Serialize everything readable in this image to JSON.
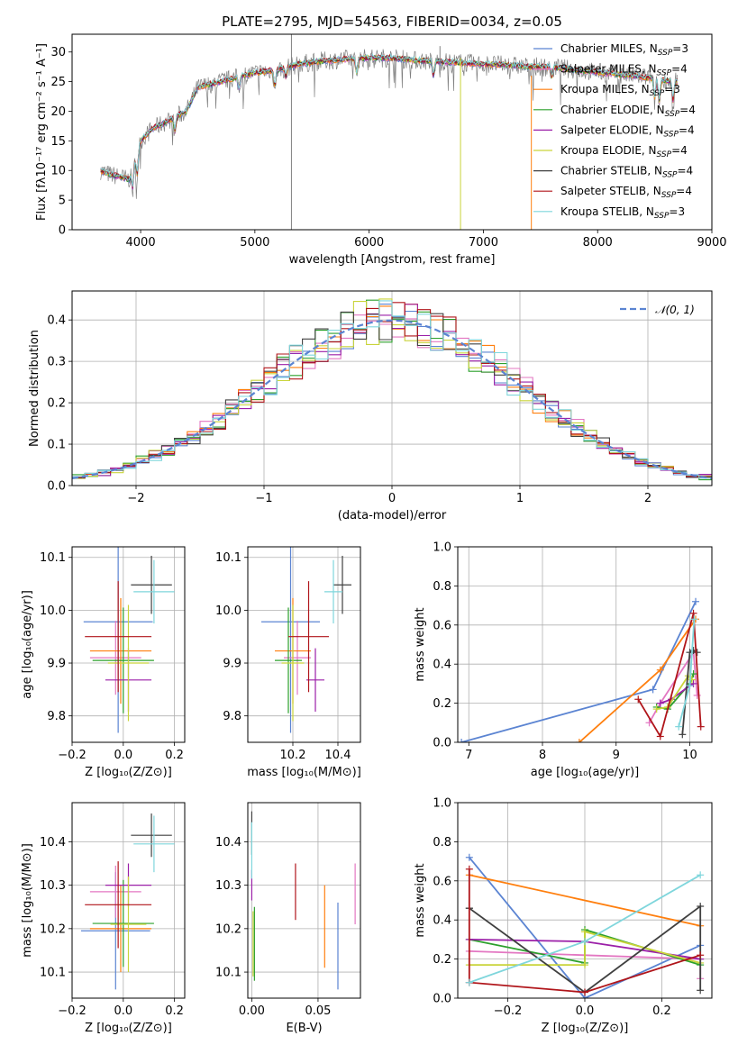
{
  "colors": {
    "chabrier_miles": "#5b84d2",
    "salpeter_miles": "#e377c2",
    "kroupa_miles": "#ff7f0e",
    "chabrier_elodie": "#2ca02c",
    "salpeter_elodie": "#9b1fa8",
    "kroupa_elodie": "#c9d43a",
    "chabrier_stelib": "#404040",
    "salpeter_stelib": "#b0151a",
    "kroupa_stelib": "#7fd6dc",
    "gaussian": "#5b84d2"
  },
  "chart_data": [
    {
      "id": "spectrum",
      "type": "line",
      "title": "PLATE=2795, MJD=54563, FIBERID=0034, z=0.05",
      "xlabel": "wavelength [Angstrom, rest frame]",
      "ylabel": "Flux [fλ10⁻¹⁷ erg cm⁻² s⁻¹ A⁻¹]",
      "xlim": [
        3400,
        9000
      ],
      "ylim": [
        0,
        33
      ],
      "xticks": [
        4000,
        5000,
        6000,
        7000,
        8000,
        9000
      ],
      "yticks": [
        0,
        5,
        10,
        15,
        20,
        25,
        30
      ],
      "grid": false,
      "legend_position": "upper-right",
      "legend": [
        {
          "label": "Chabrier MILES, N",
          "sub": "SSP",
          "suffix": "=3",
          "color": "#5b84d2"
        },
        {
          "label": "Salpeter MILES, N",
          "sub": "SSP",
          "suffix": "=4",
          "color": "#e377c2"
        },
        {
          "label": "Kroupa MILES, N",
          "sub": "SSP",
          "suffix": "=3",
          "color": "#ff7f0e"
        },
        {
          "label": "Chabrier ELODIE, N",
          "sub": "SSP",
          "suffix": "=4",
          "color": "#2ca02c"
        },
        {
          "label": "Salpeter ELODIE, N",
          "sub": "SSP",
          "suffix": "=4",
          "color": "#9b1fa8"
        },
        {
          "label": "Kroupa ELODIE, N",
          "sub": "SSP",
          "suffix": "=4",
          "color": "#c9d43a"
        },
        {
          "label": "Chabrier STELIB, N",
          "sub": "SSP",
          "suffix": "=4",
          "color": "#404040"
        },
        {
          "label": "Salpeter STELIB, N",
          "sub": "SSP",
          "suffix": "=4",
          "color": "#b0151a"
        },
        {
          "label": "Kroupa STELIB, N",
          "sub": "SSP",
          "suffix": "=3",
          "color": "#7fd6dc"
        }
      ],
      "continuum": {
        "x": [
          3650,
          3700,
          3800,
          3900,
          4000,
          4100,
          4200,
          4300,
          4400,
          4500,
          4600,
          4800,
          5000,
          5200,
          5400,
          5600,
          5800,
          6000,
          6200,
          6400,
          6600,
          6800,
          7000,
          7200,
          7400,
          7600,
          7800,
          8000,
          8200,
          8400,
          8600,
          8700
        ],
        "y": [
          10,
          9.5,
          9,
          8.5,
          15,
          17,
          18,
          19,
          20,
          24,
          24.5,
          25.5,
          26.5,
          27,
          28,
          28.5,
          28.8,
          29,
          29,
          28.6,
          28.4,
          28.2,
          28,
          27.8,
          27.5,
          27.5,
          27,
          26.6,
          26.2,
          25.8,
          25.2,
          25
        ]
      },
      "dips": [
        [
          3930,
          4
        ],
        [
          3970,
          4.5
        ],
        [
          4300,
          3
        ],
        [
          4861,
          2.5
        ],
        [
          5175,
          3.5
        ],
        [
          5270,
          2
        ],
        [
          5890,
          3
        ],
        [
          6563,
          3
        ],
        [
          7600,
          2
        ],
        [
          8500,
          4
        ],
        [
          8540,
          4.5
        ],
        [
          8660,
          4
        ]
      ],
      "spikes": [
        [
          5320,
          0,
          34
        ],
        [
          6800,
          0,
          29
        ],
        [
          7420,
          0,
          26
        ],
        [
          6620,
          28,
          31
        ]
      ]
    },
    {
      "id": "residuals",
      "type": "step",
      "xlabel": "(data-model)/error",
      "ylabel": "Normed distribution",
      "xlim": [
        -2.5,
        2.5
      ],
      "ylim": [
        0,
        0.47
      ],
      "xticks": [
        -2,
        -1,
        0,
        1,
        2
      ],
      "yticks": [
        0.0,
        0.1,
        0.2,
        0.3,
        0.4
      ],
      "grid": true,
      "legend_position": "upper-right",
      "legend": [
        {
          "label": "𝒩(0, 1)",
          "color": "#5b84d2",
          "dashed": true
        }
      ],
      "bin_width": 0.1
    },
    {
      "id": "age-vs-Z",
      "type": "errorbar",
      "xlabel": "Z [log₁₀(Z/Z⊙)]",
      "ylabel": "age  [log₁₀(age/yr)]",
      "xlim": [
        -0.2,
        0.24
      ],
      "ylim": [
        9.75,
        10.12
      ],
      "xticks": [
        -0.2,
        0.0,
        0.2
      ],
      "yticks": [
        9.8,
        9.9,
        10.0,
        10.1
      ],
      "grid": true,
      "points": [
        {
          "x": -0.02,
          "y": 9.978,
          "xerr": 0.135,
          "yerr": 0.21,
          "color": "#5b84d2"
        },
        {
          "x": -0.03,
          "y": 9.91,
          "xerr": 0.1,
          "yerr": 0.07,
          "color": "#e377c2"
        },
        {
          "x": -0.01,
          "y": 9.923,
          "xerr": 0.12,
          "yerr": 0.1,
          "color": "#ff7f0e"
        },
        {
          "x": 0.0,
          "y": 9.905,
          "xerr": 0.12,
          "yerr": 0.1,
          "color": "#2ca02c"
        },
        {
          "x": 0.02,
          "y": 9.868,
          "xerr": 0.09,
          "yerr": 0.06,
          "color": "#9b1fa8"
        },
        {
          "x": 0.02,
          "y": 9.9,
          "xerr": 0.08,
          "yerr": 0.11,
          "color": "#c9d43a"
        },
        {
          "x": 0.11,
          "y": 10.048,
          "xerr": 0.08,
          "yerr": 0.055,
          "color": "#404040"
        },
        {
          "x": -0.02,
          "y": 9.95,
          "xerr": 0.13,
          "yerr": 0.105,
          "color": "#b0151a"
        },
        {
          "x": 0.12,
          "y": 10.035,
          "xerr": 0.08,
          "yerr": 0.06,
          "color": "#7fd6dc"
        }
      ]
    },
    {
      "id": "age-vs-mass",
      "type": "errorbar",
      "xlabel": "mass [log₁₀(M/M⊙)]",
      "ylabel": "",
      "xlim": [
        10.0,
        10.5
      ],
      "ylim": [
        9.75,
        10.12
      ],
      "xticks": [
        10.2,
        10.4
      ],
      "yticks": [
        9.8,
        9.9,
        10.0,
        10.1
      ],
      "grid": true,
      "points": [
        {
          "x": 10.19,
          "y": 9.978,
          "xerr": 0.13,
          "yerr": 0.21,
          "color": "#5b84d2"
        },
        {
          "x": 10.22,
          "y": 9.91,
          "xerr": 0.06,
          "yerr": 0.07,
          "color": "#e377c2"
        },
        {
          "x": 10.2,
          "y": 9.923,
          "xerr": 0.08,
          "yerr": 0.1,
          "color": "#ff7f0e"
        },
        {
          "x": 10.18,
          "y": 9.905,
          "xerr": 0.06,
          "yerr": 0.1,
          "color": "#2ca02c"
        },
        {
          "x": 10.3,
          "y": 9.868,
          "xerr": 0.04,
          "yerr": 0.06,
          "color": "#9b1fa8"
        },
        {
          "x": 10.2,
          "y": 9.9,
          "xerr": 0.05,
          "yerr": 0.11,
          "color": "#c9d43a"
        },
        {
          "x": 10.42,
          "y": 10.048,
          "xerr": 0.04,
          "yerr": 0.055,
          "color": "#404040"
        },
        {
          "x": 10.27,
          "y": 9.95,
          "xerr": 0.09,
          "yerr": 0.105,
          "color": "#b0151a"
        },
        {
          "x": 10.38,
          "y": 10.035,
          "xerr": 0.04,
          "yerr": 0.06,
          "color": "#7fd6dc"
        }
      ]
    },
    {
      "id": "weight-vs-age",
      "type": "line",
      "xlabel": "age  [log₁₀(age/yr)]",
      "ylabel": "mass weight",
      "xlim": [
        6.85,
        10.3
      ],
      "ylim": [
        0,
        1.0
      ],
      "xticks": [
        7,
        8,
        9,
        10
      ],
      "yticks": [
        0.0,
        0.2,
        0.4,
        0.6,
        0.8,
        1.0
      ],
      "grid": true,
      "series": [
        {
          "color": "#5b84d2",
          "x": [
            6.9,
            9.5,
            10.08
          ],
          "y": [
            0.0,
            0.27,
            0.72
          ]
        },
        {
          "color": "#e377c2",
          "x": [
            9.45,
            9.6,
            10.05,
            10.1
          ],
          "y": [
            0.1,
            0.2,
            0.46,
            0.24
          ]
        },
        {
          "color": "#ff7f0e",
          "x": [
            8.5,
            9.6,
            10.08
          ],
          "y": [
            0.0,
            0.37,
            0.63
          ]
        },
        {
          "color": "#2ca02c",
          "x": [
            9.55,
            9.7,
            10.0,
            10.05
          ],
          "y": [
            0.18,
            0.17,
            0.3,
            0.35
          ]
        },
        {
          "color": "#9b1fa8",
          "x": [
            9.6,
            9.75,
            10.0,
            10.05
          ],
          "y": [
            0.2,
            0.22,
            0.29,
            0.3
          ]
        },
        {
          "color": "#c9d43a",
          "x": [
            9.55,
            9.7,
            9.98,
            10.03
          ],
          "y": [
            0.17,
            0.18,
            0.34,
            0.32
          ]
        },
        {
          "color": "#404040",
          "x": [
            9.9,
            10.0,
            10.05,
            10.1
          ],
          "y": [
            0.04,
            0.46,
            0.47,
            0.46
          ]
        },
        {
          "color": "#b0151a",
          "x": [
            9.3,
            9.6,
            10.05,
            10.15
          ],
          "y": [
            0.22,
            0.03,
            0.66,
            0.08
          ]
        },
        {
          "color": "#7fd6dc",
          "x": [
            9.85,
            10.0,
            10.06
          ],
          "y": [
            0.08,
            0.29,
            0.63
          ]
        }
      ]
    },
    {
      "id": "mass-vs-Z",
      "type": "errorbar",
      "xlabel": "Z [log₁₀(Z/Z⊙)]",
      "ylabel": "mass [log₁₀(M/M⊙)]",
      "xlim": [
        -0.2,
        0.24
      ],
      "ylim": [
        10.04,
        10.49
      ],
      "xticks": [
        -0.2,
        0.0,
        0.2
      ],
      "yticks": [
        10.1,
        10.2,
        10.3,
        10.4
      ],
      "grid": true,
      "points": [
        {
          "x": -0.03,
          "y": 10.195,
          "xerr": 0.135,
          "yerr": 0.135,
          "color": "#5b84d2"
        },
        {
          "x": -0.03,
          "y": 10.285,
          "xerr": 0.1,
          "yerr": 0.06,
          "color": "#e377c2"
        },
        {
          "x": -0.01,
          "y": 10.2,
          "xerr": 0.12,
          "yerr": 0.1,
          "color": "#ff7f0e"
        },
        {
          "x": 0.0,
          "y": 10.212,
          "xerr": 0.12,
          "yerr": 0.1,
          "color": "#2ca02c"
        },
        {
          "x": 0.02,
          "y": 10.3,
          "xerr": 0.09,
          "yerr": 0.05,
          "color": "#9b1fa8"
        },
        {
          "x": 0.02,
          "y": 10.21,
          "xerr": 0.07,
          "yerr": 0.11,
          "color": "#c9d43a"
        },
        {
          "x": 0.11,
          "y": 10.415,
          "xerr": 0.08,
          "yerr": 0.05,
          "color": "#404040"
        },
        {
          "x": -0.02,
          "y": 10.255,
          "xerr": 0.13,
          "yerr": 0.1,
          "color": "#b0151a"
        },
        {
          "x": 0.12,
          "y": 10.395,
          "xerr": 0.08,
          "yerr": 0.065,
          "color": "#7fd6dc"
        }
      ]
    },
    {
      "id": "mass-vs-ebv",
      "type": "errorbar",
      "xlabel": "E(B-V)",
      "ylabel": "",
      "xlim": [
        -0.003,
        0.082
      ],
      "ylim": [
        10.04,
        10.49
      ],
      "xticks": [
        0.0,
        0.05
      ],
      "yticks": [
        10.1,
        10.2,
        10.3,
        10.4
      ],
      "grid": true,
      "points": [
        {
          "x": 0.065,
          "y": 10.16,
          "xerr": 0,
          "yerr": 0.1,
          "color": "#5b84d2"
        },
        {
          "x": 0.078,
          "y": 10.28,
          "xerr": 0,
          "yerr": 0.07,
          "color": "#e377c2"
        },
        {
          "x": 0.055,
          "y": 10.205,
          "xerr": 0,
          "yerr": 0.095,
          "color": "#ff7f0e"
        },
        {
          "x": 0.002,
          "y": 10.165,
          "xerr": 0,
          "yerr": 0.085,
          "color": "#2ca02c"
        },
        {
          "x": 0.0,
          "y": 10.3,
          "xerr": 0,
          "yerr": 0.035,
          "color": "#9b1fa8"
        },
        {
          "x": 0.001,
          "y": 10.165,
          "xerr": 0,
          "yerr": 0.075,
          "color": "#c9d43a"
        },
        {
          "x": 0.0,
          "y": 10.42,
          "xerr": 0,
          "yerr": 0.05,
          "color": "#404040"
        },
        {
          "x": 0.033,
          "y": 10.285,
          "xerr": 0,
          "yerr": 0.065,
          "color": "#b0151a"
        },
        {
          "x": 0.0,
          "y": 10.38,
          "xerr": 0,
          "yerr": 0.065,
          "color": "#7fd6dc"
        }
      ]
    },
    {
      "id": "weight-vs-Z",
      "type": "line",
      "xlabel": "Z [log₁₀(Z/Z⊙)]",
      "ylabel": "mass weight",
      "xlim": [
        -0.33,
        0.33
      ],
      "ylim": [
        0,
        1.0
      ],
      "xticks": [
        -0.2,
        0.0,
        0.2
      ],
      "yticks": [
        0.0,
        0.2,
        0.4,
        0.6,
        0.8,
        1.0
      ],
      "grid": true,
      "series": [
        {
          "color": "#5b84d2",
          "x": [
            -0.3,
            0.0,
            0.3
          ],
          "y": [
            0.72,
            0.0,
            0.27
          ]
        },
        {
          "color": "#e377c2",
          "x": [
            -0.3,
            0.0,
            0.3,
            0.3
          ],
          "y": [
            0.24,
            0.22,
            0.2,
            0.1
          ]
        },
        {
          "color": "#ff7f0e",
          "x": [
            -0.3,
            0.3
          ],
          "y": [
            0.63,
            0.37
          ]
        },
        {
          "color": "#2ca02c",
          "x": [
            -0.3,
            0.0,
            0.0,
            0.3
          ],
          "y": [
            0.3,
            0.18,
            0.35,
            0.17
          ]
        },
        {
          "color": "#9b1fa8",
          "x": [
            -0.3,
            0.0,
            0.3
          ],
          "y": [
            0.3,
            0.29,
            0.2
          ]
        },
        {
          "color": "#c9d43a",
          "x": [
            -0.3,
            0.0,
            0.0,
            0.3
          ],
          "y": [
            0.17,
            0.17,
            0.34,
            0.18
          ]
        },
        {
          "color": "#404040",
          "x": [
            -0.3,
            -0.3,
            0.0,
            0.3,
            0.3
          ],
          "y": [
            0.46,
            0.46,
            0.03,
            0.47,
            0.04
          ]
        },
        {
          "color": "#b0151a",
          "x": [
            -0.3,
            -0.3,
            0.0,
            0.3
          ],
          "y": [
            0.66,
            0.08,
            0.03,
            0.22
          ]
        },
        {
          "color": "#7fd6dc",
          "x": [
            -0.3,
            0.0,
            0.3
          ],
          "y": [
            0.08,
            0.29,
            0.63
          ]
        }
      ]
    }
  ]
}
